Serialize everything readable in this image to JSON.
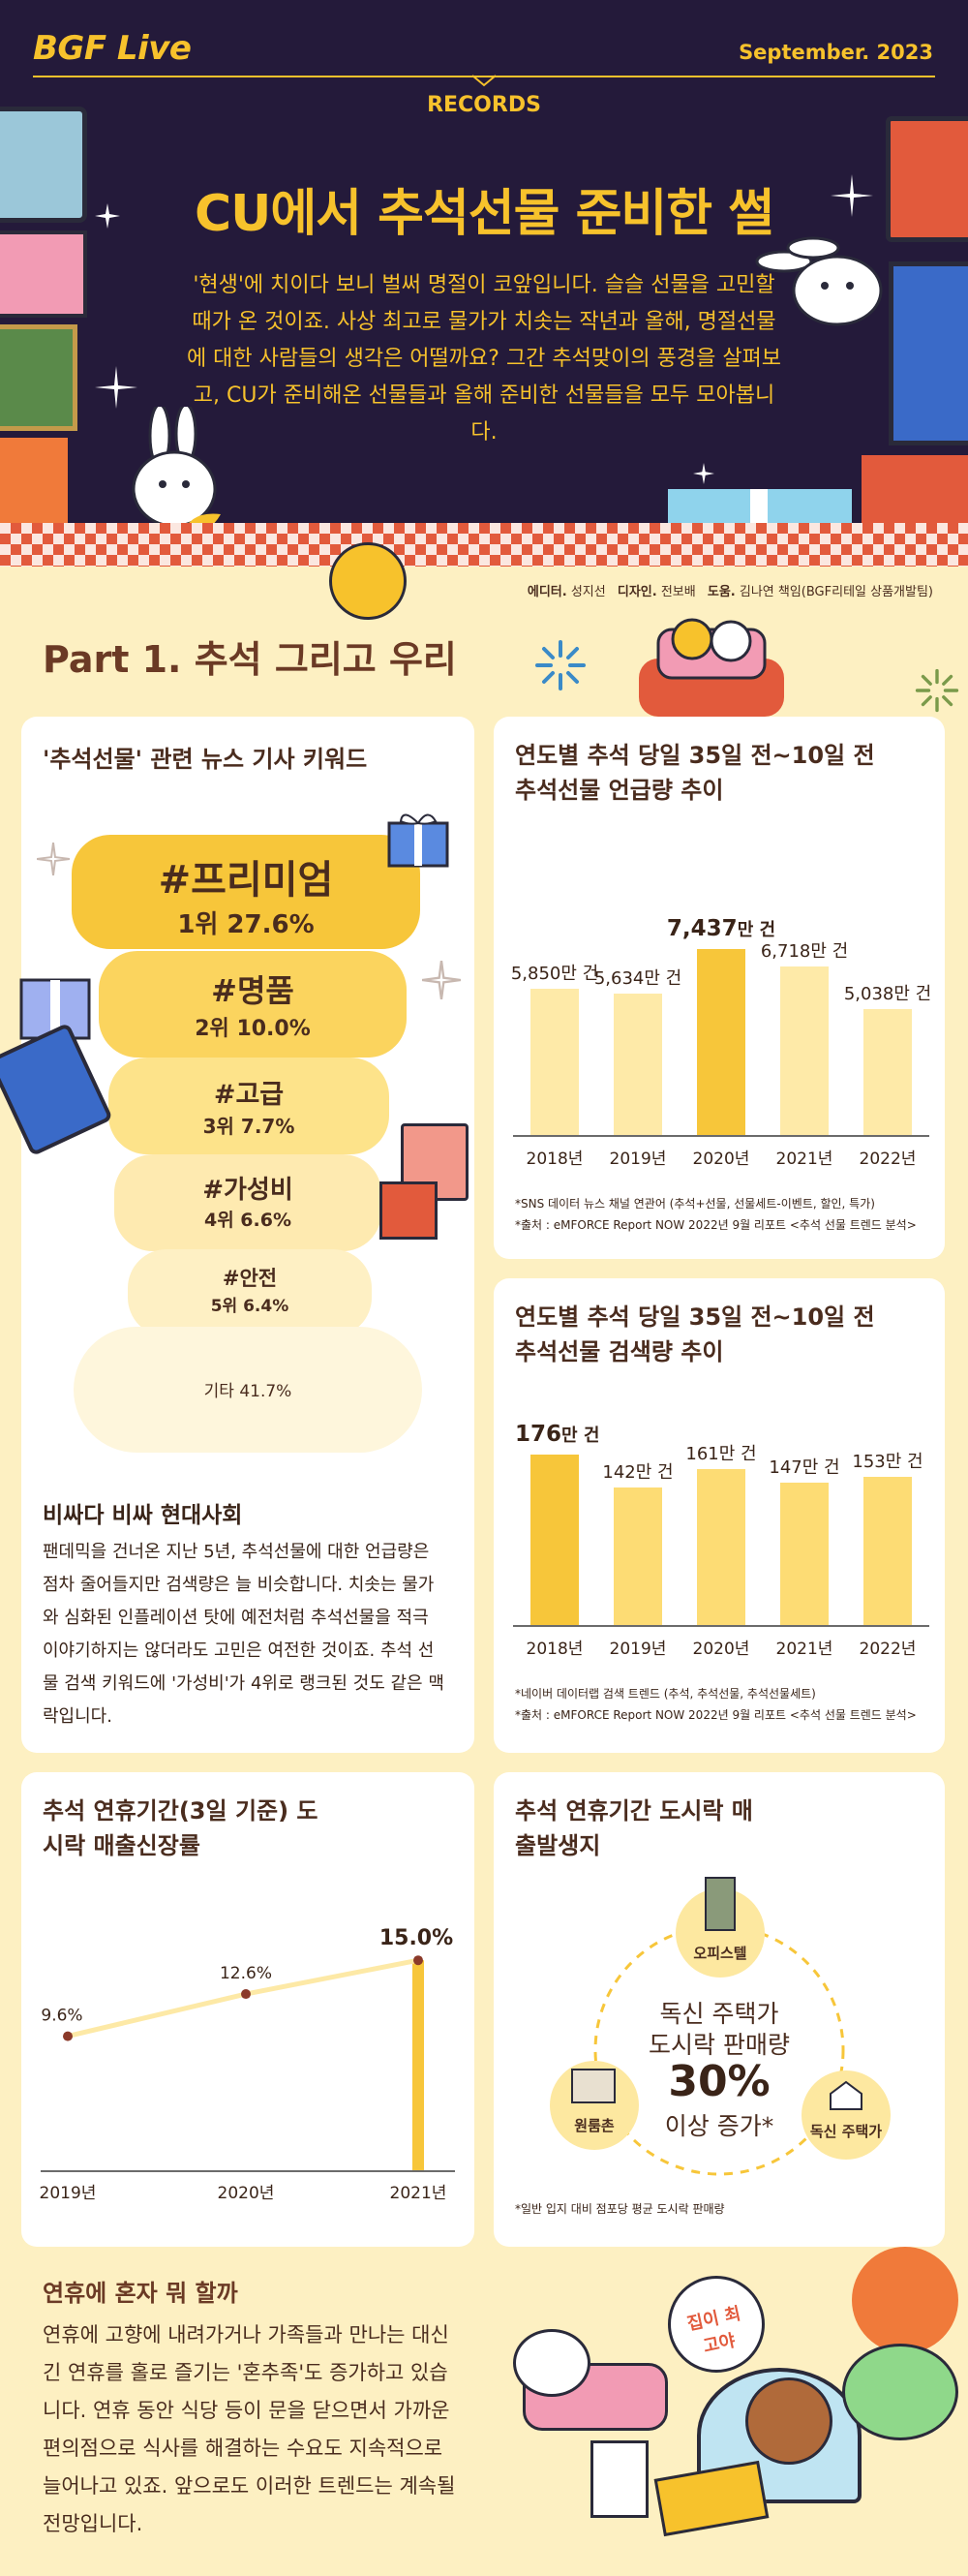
{
  "header": {
    "brand": "BGF Live",
    "issue_date": "September.  2023",
    "section": "RECORDS",
    "title": "CU에서 추석선물 준비한 썰",
    "intro": "'현생'에 치이다 보니 벌써 명절이 코앞입니다. 슬슬 선물을 고민할 때가 온 것이죠. 사상 최고로 물가가 치솟는 작년과 올해, 명절선물에 대한 사람들의 생각은 어떨까요? 그간 추석맞이의 풍경을 살펴보고, CU가 준비해온 선물들과 올해 준비한 선물들을 모두 모아봅니다."
  },
  "credits": {
    "editor_label": "에디터.",
    "editor": "성지선",
    "designer_label": "디자인.",
    "designer": "전보배",
    "help_label": "도움.",
    "help": "김나연 책임(BGF리테일 상품개발팀)"
  },
  "part_title": "Part 1. 추석 그리고 우리",
  "keywords_card": {
    "title": "'추석선물' 관련 뉴스 기사 키워드",
    "keywords": [
      {
        "name": "#프리미엄",
        "rank": "1위 27.6%"
      },
      {
        "name": "#명품",
        "rank": "2위 10.0%"
      },
      {
        "name": "#고급",
        "rank": "3위 7.7%"
      },
      {
        "name": "#가성비",
        "rank": "4위 6.6%"
      },
      {
        "name": "#안전",
        "rank": "5위 6.4%"
      },
      {
        "name": "기타 41.7%",
        "rank": ""
      }
    ],
    "subhead": "비싸다 비싸 현대사회",
    "body": "팬데믹을 건너온 지난 5년, 추석선물에 대한 언급량은 점차 줄어들지만 검색량은 늘 비슷합니다. 치솟는 물가와 심화된 인플레이션 탓에 예전처럼 추석선물을 적극 이야기하지는 않더라도 고민은 여전한 것이죠. 추석 선물 검색 키워드에 '가성비'가 4위로 랭크된 것도 같은 맥락입니다."
  },
  "chart_data": [
    {
      "type": "bar",
      "title": "연도별 추석 당일 35일 전~10일 전 추석선물 언급량 추이",
      "categories": [
        "2018년",
        "2019년",
        "2020년",
        "2021년",
        "2022년"
      ],
      "values": [
        5850,
        5634,
        7437,
        6718,
        5038
      ],
      "labels": [
        "5,850만 건",
        "5,634만 건",
        "7,437",
        "6,718만 건",
        "5,038만 건"
      ],
      "highlight_unit": "만 건",
      "highlight_index": 2,
      "ylim": [
        0,
        8000
      ],
      "colors": {
        "bar": "#feeaa8",
        "highlight": "#f7c63a"
      },
      "notes": [
        "*SNS 데이터 뉴스 채널 연관어 (추석+선물, 선물세트-이벤트, 할인, 특가)",
        "*출처 : eMFORCE Report NOW 2022년 9월 리포트 <추석 선물 트렌드 분석>"
      ]
    },
    {
      "type": "bar",
      "title": "연도별 추석 당일 35일 전~10일 전 추석선물 검색량 추이",
      "categories": [
        "2018년",
        "2019년",
        "2020년",
        "2021년",
        "2022년"
      ],
      "values": [
        176,
        142,
        161,
        147,
        153
      ],
      "labels": [
        "176",
        "142만 건",
        "161만 건",
        "147만 건",
        "153만 건"
      ],
      "highlight_unit": "만 건",
      "highlight_index": 0,
      "ylim": [
        0,
        200
      ],
      "colors": {
        "bar": "#fddc74",
        "highlight": "#f7c63a"
      },
      "notes": [
        "*네이버 데이터랩 검색 트렌드 (추석, 추석선물, 추석선물세트)",
        "*출처 : eMFORCE Report NOW 2022년 9월 리포트 <추석 선물 트렌드 분석>"
      ]
    },
    {
      "type": "line",
      "title": "추석 연휴기간(3일 기준) 도시락 매출신장률",
      "categories": [
        "2019년",
        "2020년",
        "2021년"
      ],
      "values": [
        9.6,
        12.6,
        15.0
      ],
      "labels": [
        "9.6%",
        "12.6%",
        "15.0%"
      ],
      "highlight_index": 2,
      "ylim": [
        0,
        16
      ],
      "colors": {
        "line": "#fde9a6",
        "point": "#8b3a2a",
        "highlight": "#f7c63a"
      }
    }
  ],
  "location_card": {
    "title": "추석 연휴기간 도시락 매출발생지",
    "places": [
      "오피스텔",
      "원룸촌",
      "독신 주택가"
    ],
    "center_line1": "독신 주택가",
    "center_line2": "도시락 판매량",
    "center_value": "30%",
    "center_line3": "이상 증가*",
    "note": "*일반 입지 대비 점포당 평균 도시락 판매량"
  },
  "holiday": {
    "head": "연휴에 혼자 뭐 할까",
    "body": "연휴에 고향에 내려가거나 가족들과 만나는 대신 긴 연휴를 홀로 즐기는 '혼추족'도 증가하고 있습니다. 연휴 동안 식당 등이 문을 닫으면서 가까운 편의점으로 식사를 해결하는 수요도 지속적으로 늘어나고 있죠. 앞으로도 이러한 트렌드는 계속될 전망입니다.",
    "bubble_text": "집이 최고야"
  }
}
